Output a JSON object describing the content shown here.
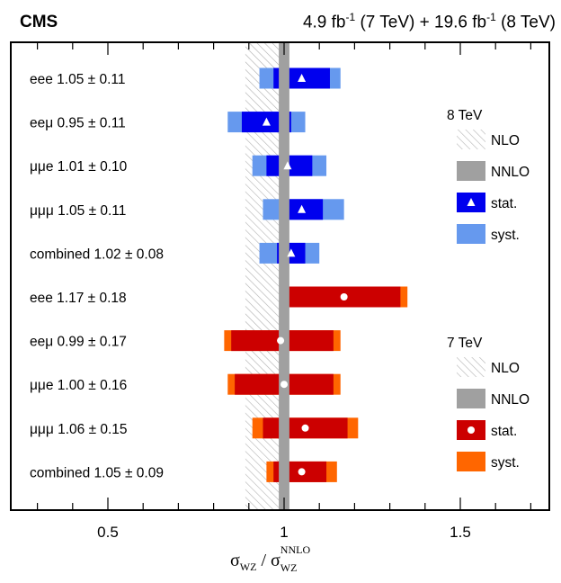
{
  "chart_data": {
    "type": "scatter",
    "header_left": "CMS",
    "header_right": {
      "lumi7": "4.9",
      "unit": "fb",
      "exp": "-1",
      "e7": "(7 TeV) + ",
      "lumi8": "19.6",
      "e8": "(8 TeV)"
    },
    "xlabel": {
      "sigma": "σ",
      "sub1": "WZ",
      "slash": " / ",
      "sup2": "NNLO",
      "sub2": "WZ"
    },
    "xlim": [
      0.25,
      1.78
    ],
    "xticks": [
      0.5,
      1,
      1.5
    ],
    "xtick_labels": [
      "0.5",
      "1",
      "1.5"
    ],
    "reference_lines": {
      "nnlo": {
        "center": 1.0,
        "halfwidth": 0.015
      },
      "nlo": {
        "low": 0.89,
        "high": 0.99
      }
    },
    "colors": {
      "stat8": "#0000ee",
      "syst8": "#6699ee",
      "stat7": "#cc0000",
      "syst7": "#ff6600",
      "nnlo": "#a0a0a0",
      "nlo_hatch": "#b0b0b0"
    },
    "measurements": [
      {
        "label": "eee 1.05 ± 0.11",
        "energy": "8 TeV",
        "value": 1.05,
        "stat_lo": 0.97,
        "stat_hi": 1.13,
        "syst_lo": 0.93,
        "syst_hi": 1.16
      },
      {
        "label": "eeμ 0.95 ± 0.11",
        "energy": "8 TeV",
        "value": 0.95,
        "stat_lo": 0.88,
        "stat_hi": 1.02,
        "syst_lo": 0.84,
        "syst_hi": 1.06
      },
      {
        "label": "μμe 1.01 ± 0.10",
        "energy": "8 TeV",
        "value": 1.01,
        "stat_lo": 0.95,
        "stat_hi": 1.08,
        "syst_lo": 0.91,
        "syst_hi": 1.12
      },
      {
        "label": "μμμ 1.05 ± 0.11",
        "energy": "8 TeV",
        "value": 1.05,
        "stat_lo": 1.0,
        "stat_hi": 1.11,
        "syst_lo": 0.94,
        "syst_hi": 1.17
      },
      {
        "label": "combined 1.02 ± 0.08",
        "energy": "8 TeV",
        "value": 1.02,
        "stat_lo": 0.98,
        "stat_hi": 1.06,
        "syst_lo": 0.93,
        "syst_hi": 1.1
      },
      {
        "label": "eee 1.17 ± 0.18",
        "energy": "7 TeV",
        "value": 1.17,
        "stat_lo": 1.01,
        "stat_hi": 1.33,
        "syst_lo": 0.99,
        "syst_hi": 1.35
      },
      {
        "label": "eeμ 0.99 ± 0.17",
        "energy": "7 TeV",
        "value": 0.99,
        "stat_lo": 0.85,
        "stat_hi": 1.14,
        "syst_lo": 0.83,
        "syst_hi": 1.16
      },
      {
        "label": "μμe 1.00 ± 0.16",
        "energy": "7 TeV",
        "value": 1.0,
        "stat_lo": 0.86,
        "stat_hi": 1.14,
        "syst_lo": 0.84,
        "syst_hi": 1.16
      },
      {
        "label": "μμμ 1.06 ± 0.15",
        "energy": "7 TeV",
        "value": 1.06,
        "stat_lo": 0.94,
        "stat_hi": 1.18,
        "syst_lo": 0.91,
        "syst_hi": 1.21
      },
      {
        "label": "combined 1.05 ± 0.09",
        "energy": "7 TeV",
        "value": 1.05,
        "stat_lo": 0.97,
        "stat_hi": 1.12,
        "syst_lo": 0.95,
        "syst_hi": 1.15
      }
    ],
    "legends": [
      {
        "title": "8 TeV",
        "items": [
          {
            "key": "nlo",
            "label": "NLO"
          },
          {
            "key": "nnlo",
            "label": "NNLO"
          },
          {
            "key": "stat8",
            "label": "stat."
          },
          {
            "key": "syst8",
            "label": "syst."
          }
        ]
      },
      {
        "title": "7 TeV",
        "items": [
          {
            "key": "nlo",
            "label": "NLO"
          },
          {
            "key": "nnlo",
            "label": "NNLO"
          },
          {
            "key": "stat7",
            "label": "stat."
          },
          {
            "key": "syst7",
            "label": "syst."
          }
        ]
      }
    ]
  }
}
